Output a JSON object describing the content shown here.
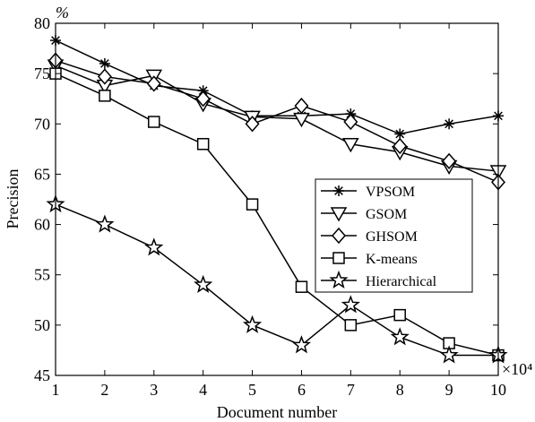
{
  "chart_data": {
    "type": "line",
    "xlabel": "Document number",
    "ylabel": "Precision",
    "y_unit_label": "%",
    "x_multiplier_label": "×10⁴",
    "x": [
      1,
      2,
      3,
      4,
      5,
      6,
      7,
      8,
      9,
      10
    ],
    "x_tick_labels": [
      "1",
      "2",
      "3",
      "4",
      "5",
      "6",
      "7",
      "8",
      "9",
      "10"
    ],
    "y_tick_labels": [
      "45",
      "50",
      "55",
      "60",
      "65",
      "70",
      "75",
      "80"
    ],
    "xlim": [
      1,
      10
    ],
    "ylim": [
      45,
      80
    ],
    "grid": false,
    "legend_position": "center-right",
    "series": [
      {
        "name": "VPSOM",
        "marker": "asterisk",
        "values": [
          78.3,
          76.0,
          73.8,
          73.3,
          70.8,
          70.8,
          71.0,
          69.0,
          70.0,
          70.8
        ]
      },
      {
        "name": "GSOM",
        "marker": "triangle-down",
        "values": [
          75.8,
          73.8,
          74.8,
          72.0,
          70.7,
          70.5,
          68.0,
          67.2,
          65.8,
          65.3
        ]
      },
      {
        "name": "GHSOM",
        "marker": "diamond",
        "values": [
          76.3,
          74.7,
          74.0,
          72.5,
          70.0,
          71.8,
          70.2,
          67.8,
          66.3,
          64.2
        ]
      },
      {
        "name": "K-means",
        "marker": "square",
        "values": [
          75.0,
          72.8,
          70.2,
          68.0,
          62.0,
          53.8,
          50.0,
          51.0,
          48.2,
          47.0
        ]
      },
      {
        "name": "Hierarchical",
        "marker": "star",
        "values": [
          62.0,
          60.0,
          57.7,
          54.0,
          50.0,
          48.0,
          52.0,
          48.8,
          47.0,
          47.0
        ]
      }
    ]
  }
}
